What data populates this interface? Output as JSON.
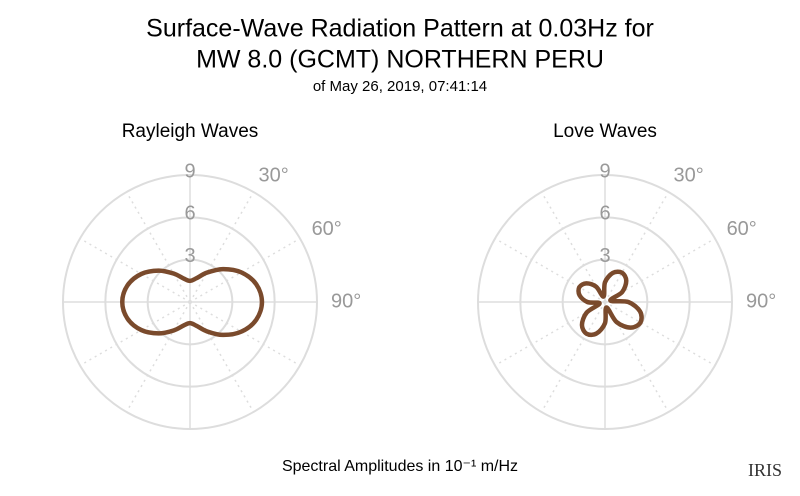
{
  "title": [
    "Surface-Wave Radiation Pattern at 0.03Hz for",
    "MW 8.0 (GCMT) NORTHERN PERU"
  ],
  "subtitle": "of May 26, 2019, 07:41:14",
  "footnote": "Spectral Amplitudes in 10⁻¹ m/Hz",
  "logo": "IRIS",
  "chart_data": [
    {
      "type": "polar",
      "title": "Rayleigh Waves",
      "theta": [
        0,
        15,
        30,
        45,
        60,
        75,
        90,
        105,
        120,
        135,
        150,
        165,
        180,
        195,
        210,
        225,
        240,
        255,
        270,
        285,
        300,
        315,
        330,
        345
      ],
      "values": [
        1.5,
        1.74,
        2.4,
        3.3,
        4.2,
        4.86,
        5.1,
        4.86,
        4.2,
        3.3,
        2.4,
        1.74,
        1.5,
        1.72,
        2.33,
        3.15,
        3.98,
        4.58,
        4.8,
        4.58,
        3.98,
        3.15,
        2.33,
        1.72
      ],
      "color": "#7a4a2c",
      "rlim": [
        0,
        9
      ],
      "rticks": [
        3,
        6,
        9
      ],
      "thetagrid": [
        0,
        30,
        60,
        90,
        120,
        150,
        180,
        210,
        240,
        270,
        300,
        330
      ],
      "thetaticks": [
        {
          "value": 30,
          "label": "30°"
        },
        {
          "value": 60,
          "label": "60°"
        },
        {
          "value": 90,
          "label": "90°"
        }
      ]
    },
    {
      "type": "polar",
      "title": "Love Waves",
      "theta": [
        0,
        15,
        30,
        45,
        60,
        75,
        90,
        105,
        120,
        135,
        150,
        165,
        180,
        195,
        210,
        225,
        240,
        255,
        270,
        285,
        300,
        315,
        330,
        345
      ],
      "values": [
        1.4,
        2.13,
        2.4,
        2.13,
        1.4,
        0.4,
        1.65,
        2.57,
        2.9,
        2.57,
        1.65,
        0.4,
        1.5,
        2.31,
        2.6,
        2.31,
        1.5,
        0.4,
        1.25,
        1.87,
        2.1,
        1.87,
        1.25,
        0.4
      ],
      "color": "#7a4a2c",
      "rlim": [
        0,
        9
      ],
      "rticks": [
        3,
        6,
        9
      ],
      "thetagrid": [
        0,
        30,
        60,
        90,
        120,
        150,
        180,
        210,
        240,
        270,
        300,
        330
      ],
      "thetaticks": [
        {
          "value": 30,
          "label": "30°"
        },
        {
          "value": 60,
          "label": "60°"
        },
        {
          "value": 90,
          "label": "90°"
        }
      ]
    }
  ]
}
